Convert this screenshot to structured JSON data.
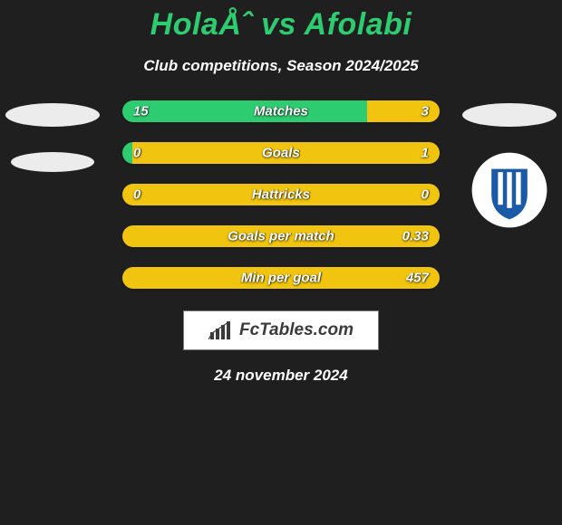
{
  "background_color": "#1f1f1f",
  "title": {
    "text": "HolaÅˆ vs Afolabi",
    "color": "#2ecc71",
    "fontsize": 34
  },
  "subtitle": {
    "text": "Club competitions, Season 2024/2025",
    "color": "#ffffff",
    "fontsize": 17
  },
  "left_club_placeholder_color": "#ececec",
  "right_club": {
    "circle_bg": "#ffffff",
    "shield_bg": "#1a5aa6",
    "stripe_color": "#ffffff"
  },
  "bars": {
    "fontsize": 15,
    "rows": [
      {
        "label": "Matches",
        "left_value": "15",
        "right_value": "3",
        "left_pct": 77,
        "right_pct": 23,
        "left_color": "#2ecc71",
        "right_color": "#f1c40f"
      },
      {
        "label": "Goals",
        "left_value": "0",
        "right_value": "1",
        "left_pct": 3,
        "right_pct": 97,
        "left_color": "#2ecc71",
        "right_color": "#f1c40f"
      },
      {
        "label": "Hattricks",
        "left_value": "0",
        "right_value": "0",
        "left_pct": 50,
        "right_pct": 50,
        "left_color": "#f1c40f",
        "right_color": "#f1c40f"
      },
      {
        "label": "Goals per match",
        "left_value": "",
        "right_value": "0.33",
        "left_pct": 0,
        "right_pct": 100,
        "left_color": "#2ecc71",
        "right_color": "#f1c40f"
      },
      {
        "label": "Min per goal",
        "left_value": "",
        "right_value": "457",
        "left_pct": 0,
        "right_pct": 100,
        "left_color": "#2ecc71",
        "right_color": "#f1c40f"
      }
    ]
  },
  "brand": {
    "text": "FcTables.com",
    "box_bg": "#ffffff",
    "box_border": "#7a7a7a",
    "text_color": "#3b3b3b",
    "icon_color": "#3b3b3b",
    "fontsize": 19
  },
  "footer": {
    "text": "24 november 2024",
    "color": "#ffffff",
    "fontsize": 17
  }
}
